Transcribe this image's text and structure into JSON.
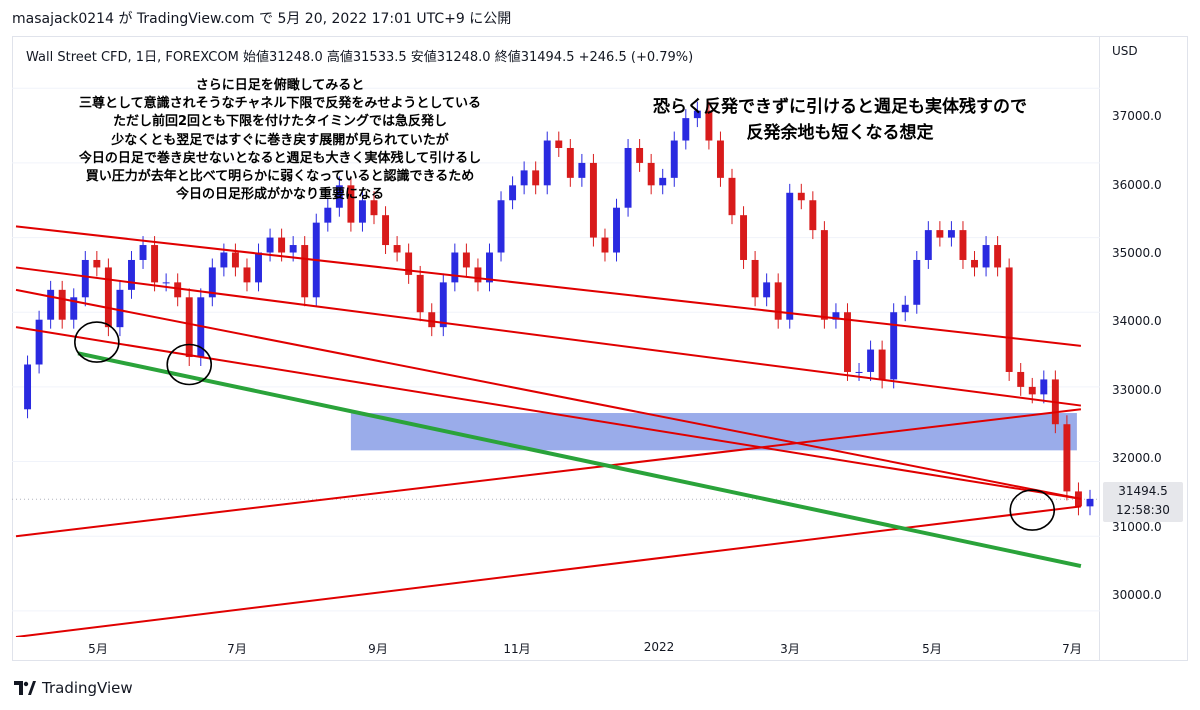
{
  "header": {
    "published": "masajack0214 が TradingView.com で 5月 20, 2022 17:01 UTC+9 に公開"
  },
  "legend": {
    "symbol": "Wall Street CFD, 1日, FOREXCOM",
    "open_label": "始値",
    "open": "31248.0",
    "high_label": "高値",
    "high": "31533.5",
    "low_label": "安値",
    "low": "31248.0",
    "close_label": "終値",
    "close": "31494.5",
    "change": "+246.5 (+0.79%)"
  },
  "annotations": {
    "left": [
      "さらに日足を俯瞰してみると",
      "三尊として意識されそうなチャネル下限で反発をみせようとしている",
      "ただし前回2回とも下限を付けたタイミングでは急反発し",
      "少なくとも翌足ではすぐに巻き戻す展開が見られていたが",
      "今日の日足で巻き戻せないとなると週足も大きく実体残して引けるし",
      "買い圧力が去年と比べて明らかに弱くなっていると認識できるため",
      "今日の日足形成がかなり重要になる"
    ],
    "right": [
      "恐らく反発できずに引けると週足も実体残すので",
      "反発余地も短くなる想定"
    ]
  },
  "y_axis": {
    "unit": "USD",
    "ticks": [
      "37000.0",
      "36000.0",
      "35000.0",
      "34000.0",
      "33000.0",
      "32000.0",
      "31000.0",
      "30000.0"
    ]
  },
  "x_axis": {
    "ticks": [
      "5月",
      "7月",
      "9月",
      "11月",
      "2022",
      "3月",
      "5月",
      "7月"
    ]
  },
  "price_tag": {
    "price": "31494.5",
    "countdown": "12:58:30"
  },
  "brand": {
    "name": "TradingView"
  },
  "colors": {
    "up": "#2a2ae0",
    "down": "#d81b1b",
    "channel": "#e00000",
    "support": "#2aa33a",
    "zone": "#8fa3e8",
    "background": "#ffffff"
  },
  "chart_data": {
    "type": "line",
    "instrument": "Wall Street CFD, 1日, FOREXCOM",
    "x_ticks": [
      "5月",
      "7月",
      "9月",
      "11月",
      "2022",
      "3月",
      "5月",
      "7月"
    ],
    "ylim": [
      29650,
      37700
    ],
    "y_ticks": [
      30000,
      31000,
      32000,
      33000,
      34000,
      35000,
      36000,
      37000
    ],
    "series": [
      {
        "values": [
          32700,
          33300,
          33900,
          34300,
          33900,
          34200,
          34700,
          34600,
          33800,
          34300,
          34700,
          34900,
          34400,
          34400,
          34200,
          33400,
          34200,
          34600,
          34800,
          34600,
          34400,
          34800,
          35000,
          34800,
          34900,
          34200,
          35200,
          35400,
          35700,
          35200,
          35500,
          35300,
          34900,
          34800,
          34500,
          34000,
          33800,
          34400,
          34800,
          34600,
          34400,
          34800,
          35500,
          35700,
          35900,
          35700,
          36300,
          36200,
          35800,
          36000,
          35000,
          34800,
          35400,
          36200,
          36000,
          35700,
          35800,
          36300,
          36600,
          36700,
          36300,
          35800,
          35300,
          34700,
          34200,
          34400,
          33900,
          35600,
          35500,
          35100,
          33900,
          34000,
          33200,
          33200,
          33500,
          33100,
          34000,
          34100,
          34700,
          35100,
          35000,
          35100,
          34700,
          34600,
          34900,
          34600,
          33200,
          33000,
          32900,
          33100,
          32500,
          31600,
          31400,
          31500
        ]
      }
    ],
    "channel_lines": [
      {
        "from": [
          1,
          35150
        ],
        "to": [
          92,
          33550
        ]
      },
      {
        "from": [
          1,
          34600
        ],
        "to": [
          92,
          32750
        ]
      },
      {
        "from": [
          1,
          34300
        ],
        "to": [
          92,
          31500
        ]
      },
      {
        "from": [
          1,
          33800
        ],
        "to": [
          92,
          31500
        ]
      },
      {
        "from": [
          1,
          31000
        ],
        "to": [
          92,
          32700
        ]
      },
      {
        "from": [
          1,
          29650
        ],
        "to": [
          92,
          31400
        ]
      }
    ],
    "support_line": {
      "from": [
        1,
        33450
      ],
      "to": [
        92,
        30600
      ]
    },
    "zone": {
      "x": [
        30,
        92
      ],
      "y": [
        32150,
        32650
      ]
    },
    "circles": [
      {
        "x": 7,
        "y": 33600
      },
      {
        "x": 15,
        "y": 33300
      },
      {
        "x": 88,
        "y": 31350
      }
    ]
  }
}
